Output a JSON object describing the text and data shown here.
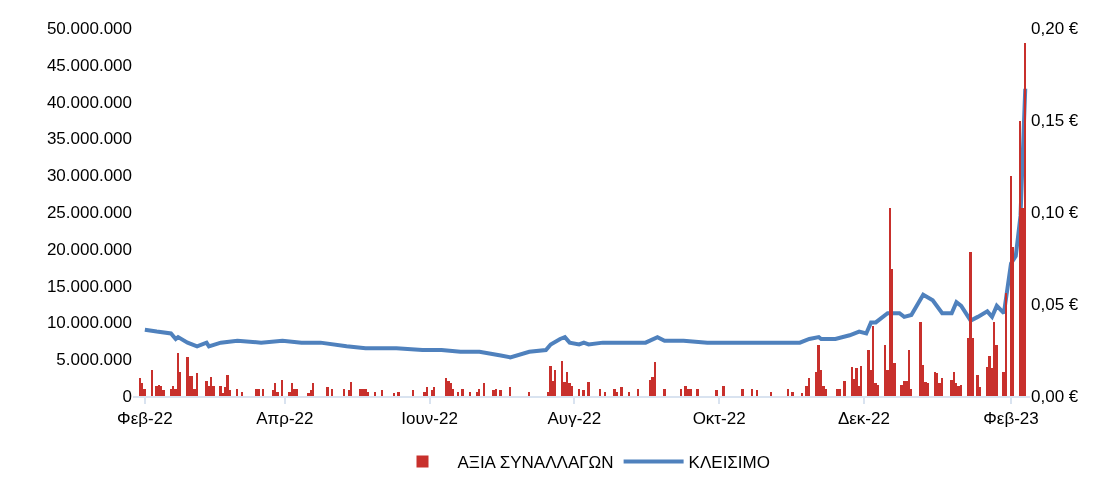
{
  "chart_data": {
    "type": "bar",
    "xlim": [
      "2022-01-27",
      "2023-02-09"
    ],
    "xticks": [
      {
        "value": "2022-02-01",
        "label": "Φεβ-22"
      },
      {
        "value": "2022-04-01",
        "label": "Απρ-22"
      },
      {
        "value": "2022-06-01",
        "label": "Ιουν-22"
      },
      {
        "value": "2022-08-01",
        "label": "Αυγ-22"
      },
      {
        "value": "2022-10-01",
        "label": "Οκτ-22"
      },
      {
        "value": "2022-12-01",
        "label": "Δεκ-22"
      },
      {
        "value": "2023-02-01",
        "label": "Φεβ-23"
      }
    ],
    "ylim": [
      0,
      50000000
    ],
    "yticks": [
      {
        "value": 0,
        "label": "0"
      },
      {
        "value": 5000000,
        "label": "5.000.000"
      },
      {
        "value": 10000000,
        "label": "10.000.000"
      },
      {
        "value": 15000000,
        "label": "15.000.000"
      },
      {
        "value": 20000000,
        "label": "20.000.000"
      },
      {
        "value": 25000000,
        "label": "25.000.000"
      },
      {
        "value": 30000000,
        "label": "30.000.000"
      },
      {
        "value": 35000000,
        "label": "35.000.000"
      },
      {
        "value": 40000000,
        "label": "40.000.000"
      },
      {
        "value": 45000000,
        "label": "45.000.000"
      },
      {
        "value": 50000000,
        "label": "50.000.000"
      }
    ],
    "y2lim": [
      0,
      0.2
    ],
    "y2ticks": [
      {
        "value": 0,
        "label": "0,00 €"
      },
      {
        "value": 0.05,
        "label": "0,05 €"
      },
      {
        "value": 0.1,
        "label": "0,10 €"
      },
      {
        "value": 0.15,
        "label": "0,15 €"
      },
      {
        "value": 0.2,
        "label": "0,20 €"
      }
    ],
    "legend": "bottom",
    "series": [
      {
        "name": "ΑΞΙΑ ΣΥΝΑΛΛΑΓΩΝ",
        "color": "#c8302c",
        "x": [
          "2022-01-30",
          "2022-01-31",
          "2022-02-01",
          "2022-02-04",
          "2022-02-06",
          "2022-02-07",
          "2022-02-08",
          "2022-02-09",
          "2022-02-12",
          "2022-02-13",
          "2022-02-14",
          "2022-02-15",
          "2022-02-16",
          "2022-02-19",
          "2022-02-20",
          "2022-02-21",
          "2022-02-22",
          "2022-02-23",
          "2022-02-27",
          "2022-02-28",
          "2022-03-01",
          "2022-03-02",
          "2022-03-05",
          "2022-03-06",
          "2022-03-07",
          "2022-03-08",
          "2022-03-09",
          "2022-03-12",
          "2022-03-14",
          "2022-03-20",
          "2022-03-21",
          "2022-03-23",
          "2022-03-27",
          "2022-03-28",
          "2022-03-29",
          "2022-03-31",
          "2022-04-03",
          "2022-04-04",
          "2022-04-05",
          "2022-04-06",
          "2022-04-11",
          "2022-04-12",
          "2022-04-13",
          "2022-04-19",
          "2022-04-21",
          "2022-04-26",
          "2022-04-28",
          "2022-04-29",
          "2022-05-03",
          "2022-05-04",
          "2022-05-05",
          "2022-05-06",
          "2022-05-09",
          "2022-05-12",
          "2022-05-17",
          "2022-05-19",
          "2022-05-25",
          "2022-05-30",
          "2022-05-31",
          "2022-06-02",
          "2022-06-03",
          "2022-06-08",
          "2022-06-09",
          "2022-06-10",
          "2022-06-11",
          "2022-06-13",
          "2022-06-15",
          "2022-06-18",
          "2022-06-21",
          "2022-06-22",
          "2022-06-24",
          "2022-06-28",
          "2022-06-29",
          "2022-07-01",
          "2022-07-05",
          "2022-07-13",
          "2022-07-21",
          "2022-07-22",
          "2022-07-23",
          "2022-07-24",
          "2022-07-27",
          "2022-07-28",
          "2022-07-29",
          "2022-07-30",
          "2022-07-31",
          "2022-08-03",
          "2022-08-05",
          "2022-08-07",
          "2022-08-12",
          "2022-08-14",
          "2022-08-18",
          "2022-08-19",
          "2022-08-21",
          "2022-08-24",
          "2022-08-28",
          "2022-09-02",
          "2022-09-03",
          "2022-09-04",
          "2022-09-08",
          "2022-09-15",
          "2022-09-17",
          "2022-09-18",
          "2022-09-19",
          "2022-09-22",
          "2022-09-30",
          "2022-10-03",
          "2022-10-11",
          "2022-10-15",
          "2022-10-17",
          "2022-10-23",
          "2022-10-30",
          "2022-11-01",
          "2022-11-05",
          "2022-11-07",
          "2022-11-08",
          "2022-11-11",
          "2022-11-12",
          "2022-11-13",
          "2022-11-14",
          "2022-11-15",
          "2022-11-20",
          "2022-11-21",
          "2022-11-23",
          "2022-11-26",
          "2022-11-27",
          "2022-11-28",
          "2022-11-29",
          "2022-11-30",
          "2022-12-03",
          "2022-12-04",
          "2022-12-05",
          "2022-12-06",
          "2022-12-07",
          "2022-12-10",
          "2022-12-11",
          "2022-12-12",
          "2022-12-13",
          "2022-12-14",
          "2022-12-17",
          "2022-12-18",
          "2022-12-19",
          "2022-12-20",
          "2022-12-21",
          "2022-12-25",
          "2022-12-26",
          "2022-12-27",
          "2022-12-28",
          "2022-12-31",
          "2023-01-01",
          "2023-01-02",
          "2023-01-03",
          "2023-01-07",
          "2023-01-08",
          "2023-01-09",
          "2023-01-10",
          "2023-01-11",
          "2023-01-14",
          "2023-01-15",
          "2023-01-16",
          "2023-01-18",
          "2023-01-19",
          "2023-01-22",
          "2023-01-23",
          "2023-01-24",
          "2023-01-25",
          "2023-01-26",
          "2023-01-29",
          "2023-01-30",
          "2023-02-01",
          "2023-02-02",
          "2023-02-05",
          "2023-02-06",
          "2023-02-07"
        ],
        "values": [
          2400000,
          1800000,
          900000,
          3500000,
          1300000,
          1500000,
          1300000,
          800000,
          1000000,
          1300000,
          1000000,
          5800000,
          3300000,
          5300000,
          2700000,
          2700000,
          900000,
          3100000,
          2100000,
          1400000,
          2600000,
          1400000,
          1300000,
          400000,
          1200000,
          2900000,
          800000,
          1000000,
          500000,
          900000,
          900000,
          1000000,
          800000,
          1800000,
          600000,
          2200000,
          600000,
          1700000,
          1000000,
          900000,
          400000,
          800000,
          1800000,
          1200000,
          900000,
          900000,
          800000,
          1900000,
          1000000,
          1000000,
          1000000,
          600000,
          600000,
          800000,
          400000,
          500000,
          800000,
          500000,
          1200000,
          800000,
          1200000,
          2400000,
          2100000,
          1800000,
          900000,
          600000,
          900000,
          600000,
          600000,
          900000,
          1800000,
          800000,
          900000,
          800000,
          1200000,
          600000,
          600000,
          4100000,
          2100000,
          3600000,
          4700000,
          1900000,
          3300000,
          1800000,
          1300000,
          900000,
          800000,
          1900000,
          900000,
          500000,
          1000000,
          600000,
          1200000,
          600000,
          1000000,
          2200000,
          2600000,
          4600000,
          900000,
          900000,
          1400000,
          1000000,
          1000000,
          900000,
          800000,
          1300000,
          1000000,
          1000000,
          800000,
          600000,
          1000000,
          600000,
          400000,
          1300000,
          2400000,
          3300000,
          6900000,
          3600000,
          1400000,
          1000000,
          1000000,
          1000000,
          2100000,
          4000000,
          2300000,
          3800000,
          1300000,
          4100000,
          6200000,
          3600000,
          9500000,
          1800000,
          1500000,
          6900000,
          3600000,
          25500000,
          17300000,
          4500000,
          1500000,
          2100000,
          2100000,
          6300000,
          1000000,
          10000000,
          4200000,
          1900000,
          1800000,
          3200000,
          3100000,
          1700000,
          2400000,
          2200000,
          3200000,
          1800000,
          1300000,
          1500000,
          7900000,
          19500000,
          7900000,
          2900000,
          1200000,
          4000000,
          5400000,
          3800000,
          10000000,
          6900000,
          3200000,
          14000000,
          29900000,
          20300000,
          37400000,
          25500000,
          47900000
        ]
      },
      {
        "name": "ΚΛΕΙΣΙΜΟ",
        "type": "line",
        "axis": "y2",
        "color": "#4f81bd",
        "line_style": "solid",
        "marker": "none",
        "x": [
          "2022-02-01",
          "2022-02-06",
          "2022-02-12",
          "2022-02-14",
          "2022-02-15",
          "2022-02-19",
          "2022-02-23",
          "2022-02-27",
          "2022-02-28",
          "2022-03-05",
          "2022-03-12",
          "2022-03-22",
          "2022-03-31",
          "2022-04-08",
          "2022-04-16",
          "2022-04-27",
          "2022-05-05",
          "2022-05-18",
          "2022-05-29",
          "2022-06-06",
          "2022-06-14",
          "2022-06-22",
          "2022-07-01",
          "2022-07-05",
          "2022-07-13",
          "2022-07-20",
          "2022-07-22",
          "2022-07-26",
          "2022-07-28",
          "2022-07-30",
          "2022-08-03",
          "2022-08-05",
          "2022-08-07",
          "2022-08-13",
          "2022-08-22",
          "2022-08-31",
          "2022-09-05",
          "2022-09-08",
          "2022-09-16",
          "2022-09-26",
          "2022-10-09",
          "2022-10-26",
          "2022-11-04",
          "2022-11-08",
          "2022-11-12",
          "2022-11-13",
          "2022-11-19",
          "2022-11-25",
          "2022-11-29",
          "2022-12-02",
          "2022-12-04",
          "2022-12-06",
          "2022-12-11",
          "2022-12-16",
          "2022-12-18",
          "2022-12-21",
          "2022-12-26",
          "2022-12-30",
          "2023-01-03",
          "2023-01-07",
          "2023-01-09",
          "2023-01-11",
          "2023-01-15",
          "2023-01-18",
          "2023-01-22",
          "2023-01-24",
          "2023-01-26",
          "2023-01-29",
          "2023-02-01",
          "2023-02-03",
          "2023-02-05",
          "2023-02-07"
        ],
        "values": [
          0.036,
          0.035,
          0.034,
          0.031,
          0.032,
          0.029,
          0.027,
          0.029,
          0.027,
          0.029,
          0.03,
          0.029,
          0.03,
          0.029,
          0.029,
          0.027,
          0.026,
          0.026,
          0.025,
          0.025,
          0.024,
          0.024,
          0.022,
          0.021,
          0.024,
          0.025,
          0.028,
          0.031,
          0.032,
          0.029,
          0.028,
          0.029,
          0.028,
          0.029,
          0.029,
          0.029,
          0.032,
          0.03,
          0.03,
          0.029,
          0.029,
          0.029,
          0.029,
          0.031,
          0.032,
          0.031,
          0.031,
          0.033,
          0.035,
          0.034,
          0.04,
          0.04,
          0.045,
          0.045,
          0.043,
          0.044,
          0.055,
          0.052,
          0.045,
          0.045,
          0.051,
          0.049,
          0.041,
          0.043,
          0.046,
          0.043,
          0.049,
          0.045,
          0.072,
          0.076,
          0.098,
          0.167
        ]
      }
    ]
  }
}
